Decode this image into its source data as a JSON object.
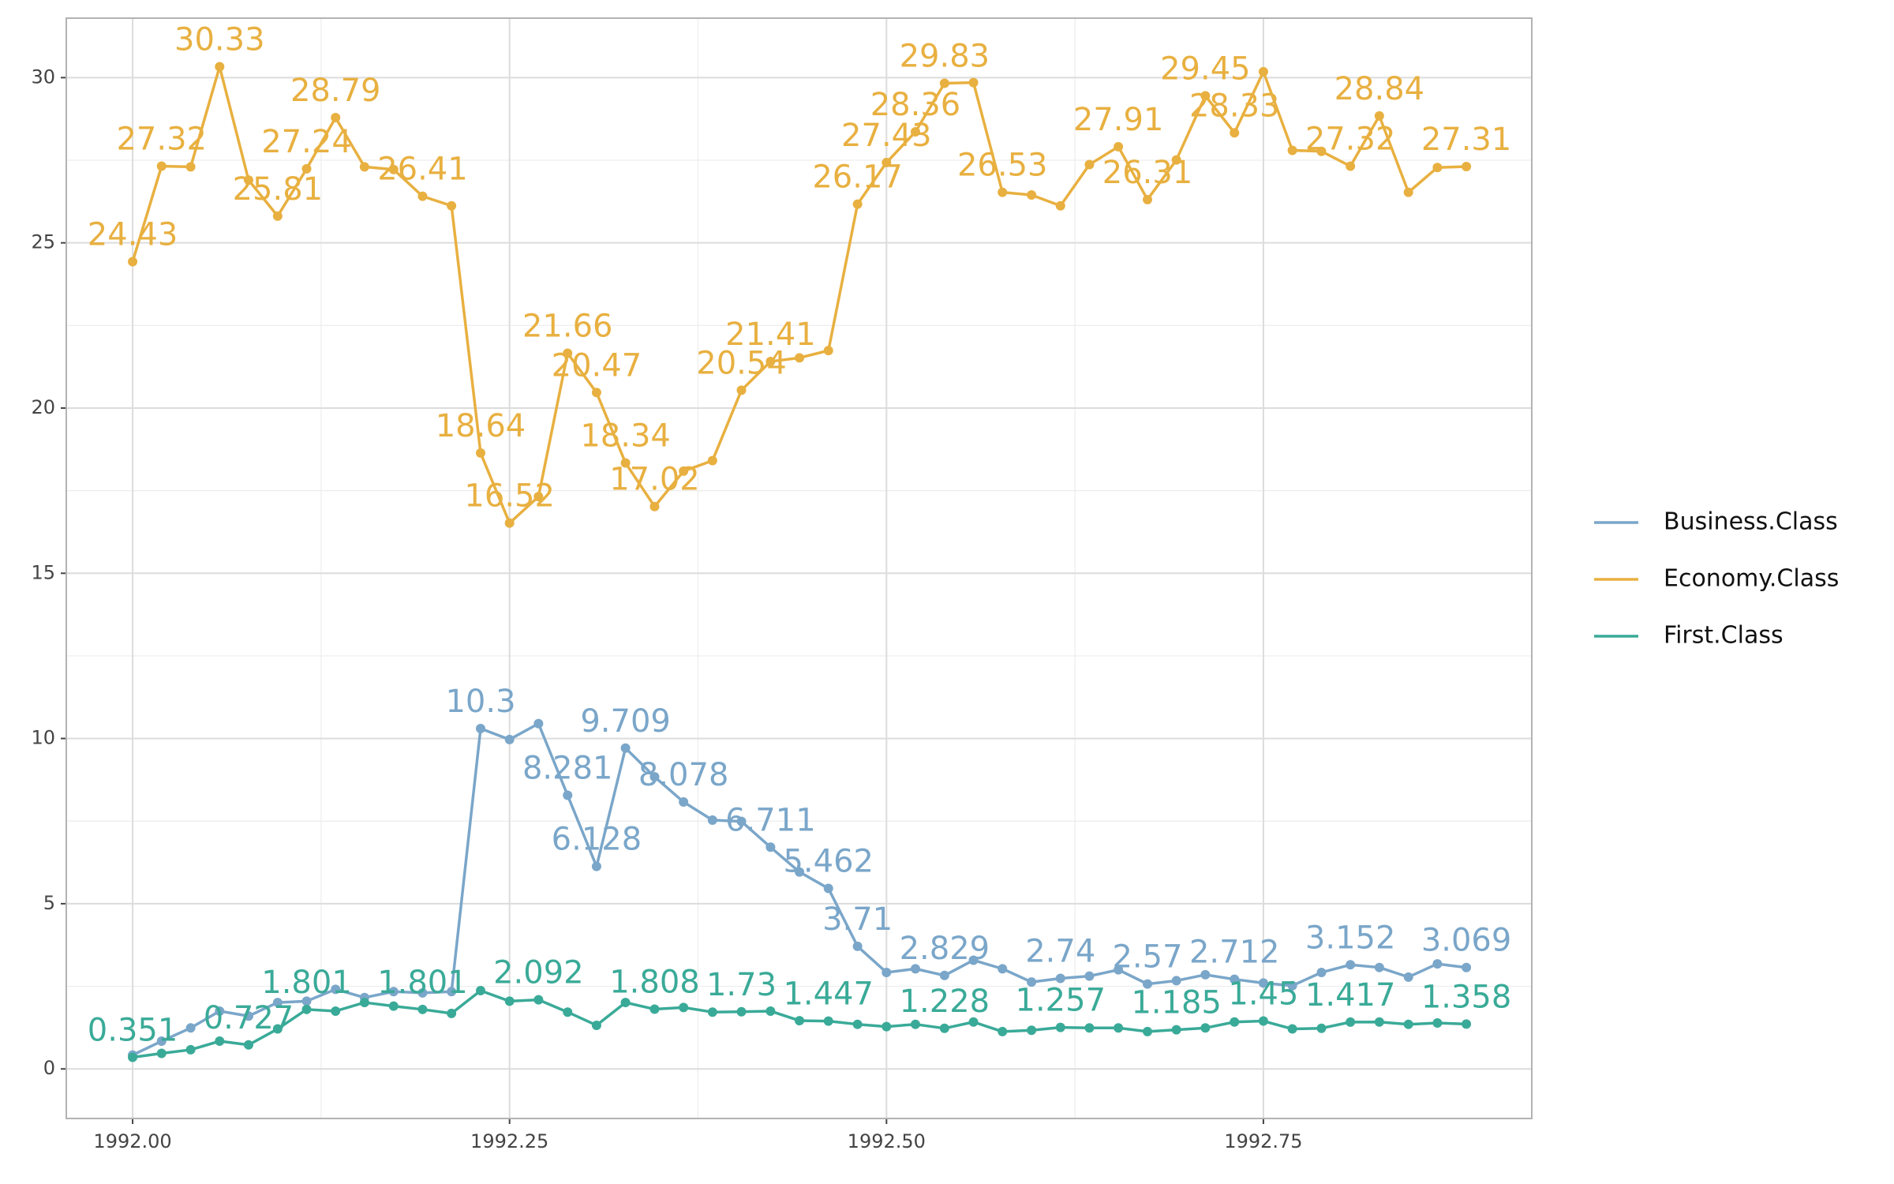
{
  "chart_data": {
    "type": "line",
    "x": [
      1992,
      1992.0192,
      1992.0385,
      1992.0577,
      1992.0769,
      1992.0962,
      1992.1154,
      1992.1346,
      1992.1538,
      1992.1731,
      1992.1923,
      1992.2115,
      1992.2308,
      1992.25,
      1992.2692,
      1992.2885,
      1992.3077,
      1992.3269,
      1992.3462,
      1992.3654,
      1992.3846,
      1992.4038,
      1992.4231,
      1992.4423,
      1992.4615,
      1992.4808,
      1992.5,
      1992.5192,
      1992.5385,
      1992.5577,
      1992.5769,
      1992.5962,
      1992.6154,
      1992.6346,
      1992.6538,
      1992.6731,
      1992.6923,
      1992.7115,
      1992.7308,
      1992.75,
      1992.7692,
      1992.7885,
      1992.8077,
      1992.8269,
      1992.8462,
      1992.8654,
      1992.8846
    ],
    "series": [
      {
        "name": "Business.Class",
        "color": "#7aa6c9",
        "values": [
          0.42,
          0.84,
          1.24,
          1.75,
          1.6,
          2.01,
          2.05,
          2.41,
          2.16,
          2.34,
          2.3,
          2.34,
          10.3,
          9.97,
          10.45,
          8.281,
          6.128,
          9.709,
          8.84,
          8.078,
          7.53,
          7.49,
          6.711,
          5.96,
          5.462,
          3.71,
          2.92,
          3.03,
          2.829,
          3.29,
          3.03,
          2.63,
          2.74,
          2.81,
          3.0,
          2.57,
          2.67,
          2.85,
          2.712,
          2.6,
          2.52,
          2.92,
          3.152,
          3.07,
          2.78,
          3.18,
          3.069
        ],
        "value_labels": [
          null,
          null,
          null,
          null,
          null,
          null,
          null,
          null,
          null,
          null,
          null,
          null,
          "10.3",
          null,
          null,
          "8.281",
          "6.128",
          "9.709",
          null,
          "8.078",
          null,
          null,
          "6.711",
          null,
          "5.462",
          "3.71",
          null,
          null,
          "2.829",
          null,
          null,
          null,
          "2.74",
          null,
          null,
          "2.57",
          null,
          null,
          "2.712",
          null,
          null,
          null,
          "3.152",
          null,
          null,
          null,
          "3.069"
        ]
      },
      {
        "name": "Economy.Class",
        "color": "#e8b040",
        "values": [
          24.43,
          27.32,
          27.3,
          30.33,
          26.9,
          25.81,
          27.24,
          28.79,
          27.3,
          27.22,
          26.41,
          26.12,
          18.64,
          16.52,
          17.32,
          21.66,
          20.47,
          18.34,
          17.02,
          18.09,
          18.41,
          20.54,
          21.41,
          21.52,
          21.74,
          26.17,
          27.43,
          28.36,
          29.83,
          29.85,
          26.53,
          26.45,
          26.12,
          27.37,
          27.91,
          26.31,
          27.51,
          29.45,
          28.33,
          30.18,
          27.8,
          27.77,
          27.32,
          28.84,
          26.53,
          27.28,
          27.31
        ],
        "value_labels": [
          "24.43",
          "27.32",
          null,
          "30.33",
          null,
          "25.81",
          "27.24",
          "28.79",
          null,
          null,
          "26.41",
          null,
          "18.64",
          "16.52",
          null,
          "21.66",
          "20.47",
          "18.34",
          "17.02",
          null,
          null,
          "20.54",
          "21.41",
          null,
          null,
          "26.17",
          "27.43",
          "28.36",
          "29.83",
          null,
          "26.53",
          null,
          null,
          null,
          "27.91",
          "26.31",
          null,
          "29.45",
          "28.33",
          null,
          null,
          null,
          "27.32",
          "28.84",
          null,
          null,
          "27.31"
        ]
      },
      {
        "name": "First.Class",
        "color": "#3aaa98",
        "values": [
          0.351,
          0.47,
          0.58,
          0.84,
          0.727,
          1.21,
          1.801,
          1.75,
          2.01,
          1.9,
          1.801,
          1.68,
          2.37,
          2.05,
          2.092,
          1.72,
          1.32,
          2.01,
          1.808,
          1.86,
          1.72,
          1.73,
          1.75,
          1.46,
          1.447,
          1.35,
          1.28,
          1.35,
          1.228,
          1.42,
          1.13,
          1.17,
          1.257,
          1.24,
          1.24,
          1.13,
          1.185,
          1.24,
          1.42,
          1.45,
          1.21,
          1.23,
          1.417,
          1.42,
          1.35,
          1.39,
          1.358
        ],
        "value_labels": [
          "0.351",
          null,
          null,
          null,
          "0.727",
          null,
          "1.801",
          null,
          null,
          null,
          "1.801",
          null,
          null,
          null,
          "2.092",
          null,
          null,
          null,
          "1.808",
          null,
          null,
          "1.73",
          null,
          null,
          "1.447",
          null,
          null,
          null,
          "1.228",
          null,
          null,
          null,
          "1.257",
          null,
          null,
          null,
          "1.185",
          null,
          null,
          "1.45",
          null,
          null,
          "1.417",
          null,
          null,
          null,
          "1.358"
        ]
      }
    ],
    "xlim": [
      1991.956,
      1992.928
    ],
    "ylim": [
      -1.5,
      31.8
    ],
    "xticks": [
      {
        "value": 1992,
        "label": "1992.00"
      },
      {
        "value": 1992.25,
        "label": "1992.25"
      },
      {
        "value": 1992.5,
        "label": "1992.50"
      },
      {
        "value": 1992.75,
        "label": "1992.75"
      }
    ],
    "yticks": [
      0,
      5,
      10,
      15,
      20,
      25,
      30
    ],
    "grid": true,
    "legend": "right"
  }
}
